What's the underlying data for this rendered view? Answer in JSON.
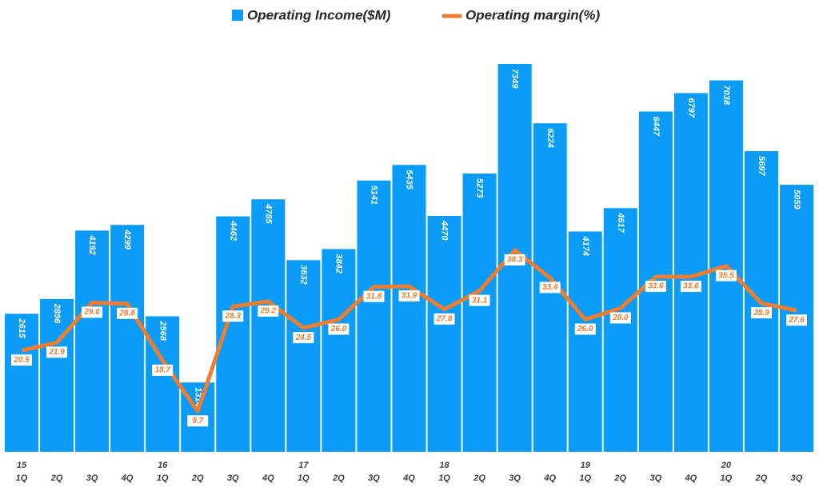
{
  "chart_data": {
    "type": "bar-line",
    "categories": [
      "1Q",
      "2Q",
      "3Q",
      "4Q",
      "1Q",
      "2Q",
      "3Q",
      "4Q",
      "1Q",
      "2Q",
      "3Q",
      "4Q",
      "1Q",
      "2Q",
      "3Q",
      "4Q",
      "1Q",
      "2Q",
      "3Q",
      "4Q",
      "1Q",
      "2Q",
      "3Q"
    ],
    "years": [
      "15",
      null,
      null,
      null,
      "16",
      null,
      null,
      null,
      "17",
      null,
      null,
      null,
      "18",
      null,
      null,
      null,
      "19",
      null,
      null,
      null,
      "20",
      null,
      null
    ],
    "series": [
      {
        "name": "Operating Income($M)",
        "type": "bar",
        "color": "#0a9cf7",
        "values": [
          2615,
          2896,
          4192,
          4299,
          2568,
          1314,
          4462,
          4785,
          3632,
          3842,
          5141,
          5435,
          4470,
          5273,
          7349,
          6224,
          4174,
          4617,
          6447,
          6797,
          7038,
          5697,
          5059
        ]
      },
      {
        "name": "Operating margin(%)",
        "type": "line",
        "axis": "y2",
        "color": "#ed7d31",
        "values": [
          20.5,
          21.9,
          29.0,
          28.8,
          18.7,
          9.7,
          28.3,
          29.2,
          24.5,
          26.0,
          31.8,
          31.9,
          27.8,
          31.1,
          38.3,
          33.4,
          26.0,
          28.0,
          33.6,
          33.6,
          35.5,
          28.9,
          27.6
        ],
        "value_labels": [
          "20.5",
          "21.9",
          "29.0",
          "28.8",
          "18.7",
          "9.7",
          "28.3",
          "29.2",
          "24.5",
          "26.0",
          "31.8",
          "31.9",
          "27.8",
          "31.1",
          "38.3",
          "33.4",
          "26.0",
          "28.0",
          "33.6",
          "33.6",
          "35.5",
          "28.9",
          "27.6"
        ]
      }
    ],
    "ylim": [
      0,
      8000
    ],
    "y2lim": [
      2.5,
      77.5
    ]
  }
}
